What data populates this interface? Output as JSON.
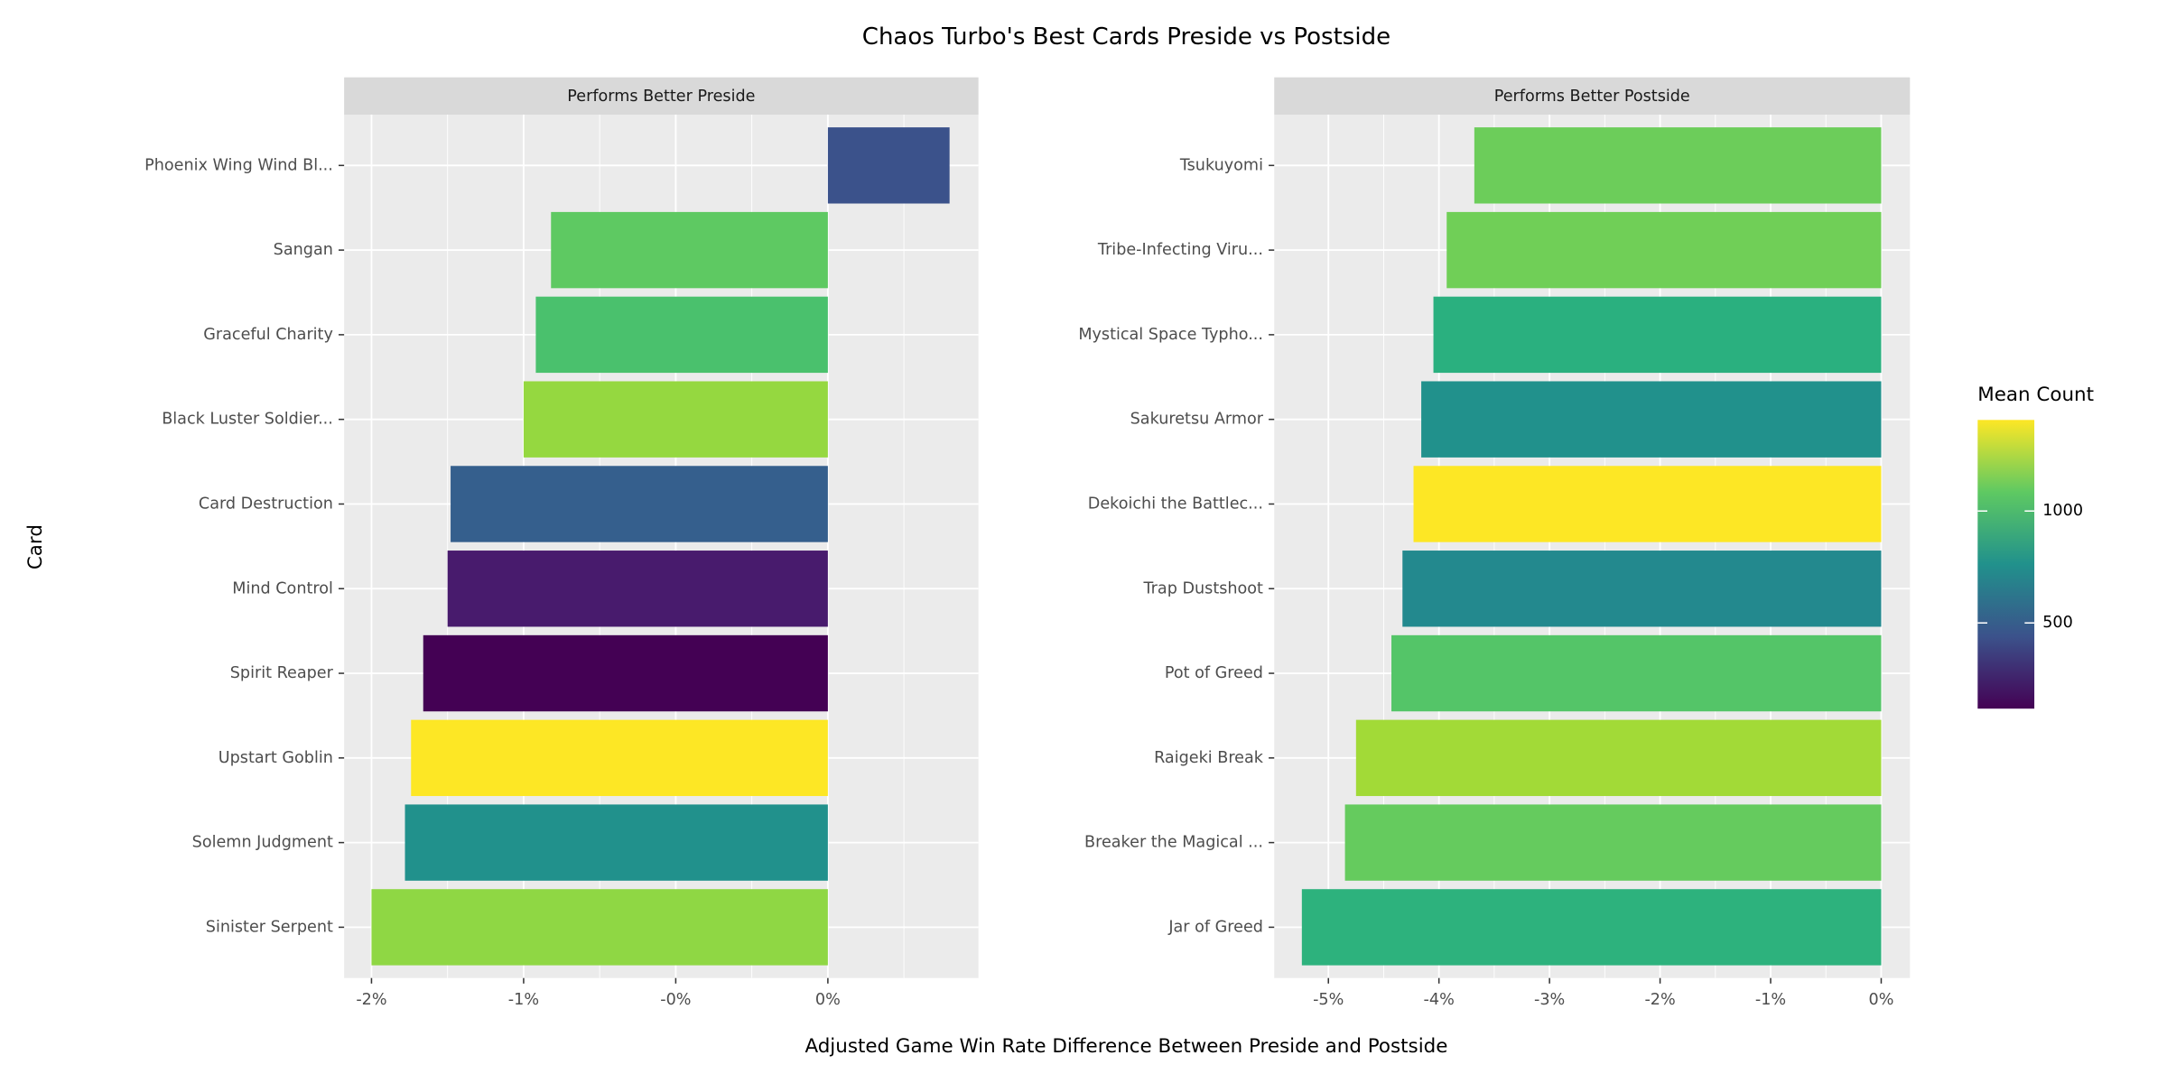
{
  "title": "Chaos Turbo's Best Cards Preside vs Postside",
  "x_label": "Adjusted Game Win Rate Difference Between Preside and Postside",
  "y_label": "Card",
  "legend": {
    "title": "Mean Count",
    "clim": [
      117,
      1407
    ],
    "ticks": [
      500,
      1000
    ],
    "colors": [
      "#440154",
      "#3b528b",
      "#21918c",
      "#5ec962",
      "#fde725"
    ]
  },
  "chart_data": [
    {
      "type": "bar",
      "orientation": "horizontal",
      "subtitle": "Performs Better Preside",
      "categories": [
        "Phoenix Wing Wind Bl...",
        "Sangan",
        "Graceful Charity",
        "Black Luster Soldier...",
        "Card Destruction",
        "Mind Control",
        "Spirit Reaper",
        "Upstart Goblin",
        "Solemn Judgment",
        "Sinister Serpent"
      ],
      "values": [
        0.4,
        -0.91,
        -0.96,
        -1.0,
        -1.24,
        -1.25,
        -1.33,
        -1.37,
        -1.39,
        -1.5
      ],
      "colors": [
        "#3b528b",
        "#5ec962",
        "#4ac16d",
        "#95d840",
        "#355f8d",
        "#481b6d",
        "#440154",
        "#fde725",
        "#21918c",
        "#8fd744"
      ],
      "xlim": [
        -1.59,
        0.495
      ],
      "xticks": [
        {
          "value": -1.5,
          "label": "-2%"
        },
        {
          "value": -1,
          "label": "-1%"
        },
        {
          "value": -0.5,
          "label": "-0%"
        },
        {
          "value": 0,
          "label": "0%"
        }
      ],
      "grid": true
    },
    {
      "type": "bar",
      "orientation": "horizontal",
      "subtitle": "Performs Better Postside",
      "categories": [
        "Tsukuyomi",
        "Tribe-Infecting Viru...",
        "Mystical Space Typho...",
        "Sakuretsu Armor",
        "Dekoichi the Battlec...",
        "Trap Dustshoot",
        "Pot of Greed",
        "Raigeki Break",
        "Breaker the Magical ...",
        "Jar of Greed"
      ],
      "values": [
        -3.68,
        -3.93,
        -4.05,
        -4.16,
        -4.23,
        -4.33,
        -4.43,
        -4.75,
        -4.85,
        -5.24
      ],
      "colors": [
        "#6ccd5a",
        "#70cf57",
        "#2ab07f",
        "#21918c",
        "#fde725",
        "#23898e",
        "#54c568",
        "#a2da37",
        "#65cb5e",
        "#2db27d"
      ],
      "xlim": [
        -5.49,
        0.26
      ],
      "xticks": [
        {
          "value": -5,
          "label": "-5%"
        },
        {
          "value": -4,
          "label": "-4%"
        },
        {
          "value": -3,
          "label": "-3%"
        },
        {
          "value": -2,
          "label": "-2%"
        },
        {
          "value": -1,
          "label": "-1%"
        },
        {
          "value": 0,
          "label": "0%"
        }
      ],
      "grid": true
    }
  ]
}
